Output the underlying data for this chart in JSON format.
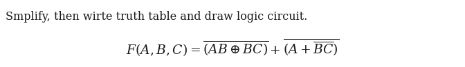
{
  "line1": "Smplify, then wirte truth table and draw logic circuit.",
  "background_color": "#ffffff",
  "text_color": "#1a1a1a",
  "font_size_line1": 11.5,
  "font_size_formula": 13.5,
  "fig_width": 6.72,
  "fig_height": 0.98,
  "dpi": 100
}
